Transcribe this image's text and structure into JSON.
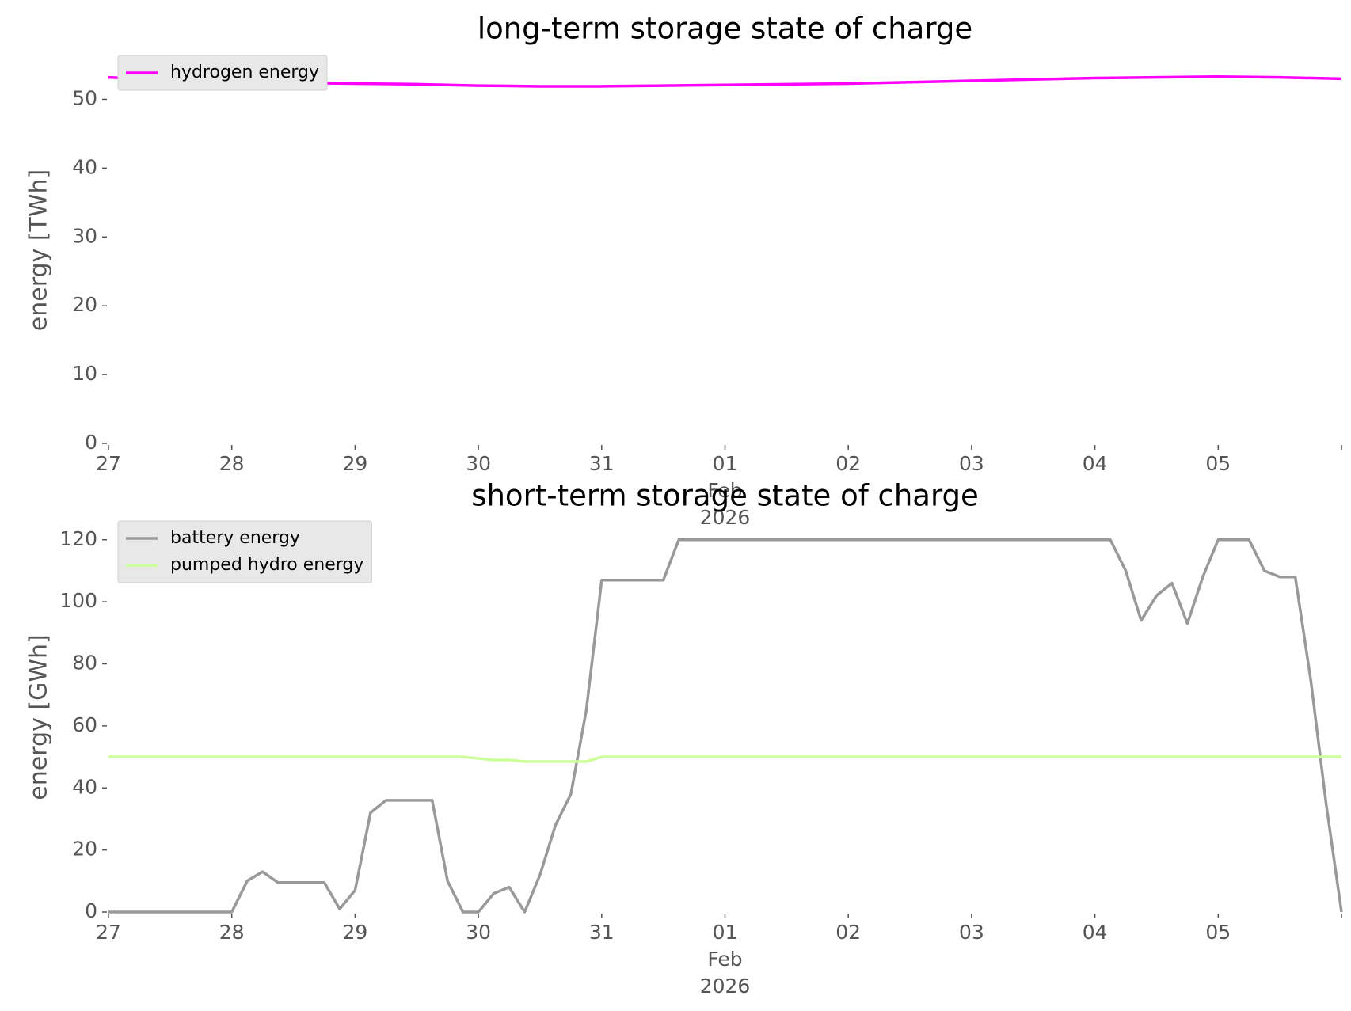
{
  "chart_data": [
    {
      "type": "line",
      "title": "long-term storage state of charge",
      "ylabel": "energy [TWh]",
      "legend": "upper left",
      "x": [
        "2026-01-27T00:00",
        "2026-01-27T12:00",
        "2026-01-28T00:00",
        "2026-01-28T12:00",
        "2026-01-29T00:00",
        "2026-01-29T12:00",
        "2026-01-30T00:00",
        "2026-01-30T12:00",
        "2026-01-31T00:00",
        "2026-01-31T12:00",
        "2026-02-01T00:00",
        "2026-02-01T12:00",
        "2026-02-02T00:00",
        "2026-02-02T12:00",
        "2026-02-03T00:00",
        "2026-02-03T12:00",
        "2026-02-04T00:00",
        "2026-02-04T12:00",
        "2026-02-05T00:00",
        "2026-02-05T12:00",
        "2026-02-06T00:00"
      ],
      "series": [
        {
          "name": "hydrogen energy",
          "color": "#ff00ff",
          "values": [
            53.2,
            52.8,
            52.6,
            52.4,
            52.3,
            52.2,
            52.0,
            51.9,
            51.9,
            52.0,
            52.1,
            52.2,
            52.3,
            52.5,
            52.7,
            52.9,
            53.1,
            53.2,
            53.3,
            53.2,
            53.0
          ]
        }
      ],
      "xlim": [
        "2026-01-27T00:00",
        "2026-02-06T00:00"
      ],
      "xticks": [
        {
          "value": "2026-01-27T00:00",
          "label": "27"
        },
        {
          "value": "2026-01-28T00:00",
          "label": "28"
        },
        {
          "value": "2026-01-29T00:00",
          "label": "29"
        },
        {
          "value": "2026-01-30T00:00",
          "label": "30"
        },
        {
          "value": "2026-01-31T00:00",
          "label": "31"
        },
        {
          "value": "2026-02-01T00:00",
          "label": "01\nFeb\n2026"
        },
        {
          "value": "2026-02-02T00:00",
          "label": "02"
        },
        {
          "value": "2026-02-03T00:00",
          "label": "03"
        },
        {
          "value": "2026-02-04T00:00",
          "label": "04"
        },
        {
          "value": "2026-02-05T00:00",
          "label": "05"
        },
        {
          "value": "2026-02-06T00:00",
          "label": ""
        }
      ],
      "ylim": [
        0,
        55
      ],
      "yticks": [
        0,
        10,
        20,
        30,
        40,
        50
      ]
    },
    {
      "type": "line",
      "title": "short-term storage state of charge",
      "ylabel": "energy [GWh]",
      "legend": "upper left",
      "x": [
        "2026-01-27T00:00",
        "2026-01-27T03:00",
        "2026-01-27T06:00",
        "2026-01-27T09:00",
        "2026-01-27T12:00",
        "2026-01-27T15:00",
        "2026-01-27T18:00",
        "2026-01-27T21:00",
        "2026-01-28T00:00",
        "2026-01-28T03:00",
        "2026-01-28T06:00",
        "2026-01-28T09:00",
        "2026-01-28T12:00",
        "2026-01-28T15:00",
        "2026-01-28T18:00",
        "2026-01-28T21:00",
        "2026-01-29T00:00",
        "2026-01-29T03:00",
        "2026-01-29T06:00",
        "2026-01-29T09:00",
        "2026-01-29T12:00",
        "2026-01-29T15:00",
        "2026-01-29T18:00",
        "2026-01-29T21:00",
        "2026-01-30T00:00",
        "2026-01-30T03:00",
        "2026-01-30T06:00",
        "2026-01-30T09:00",
        "2026-01-30T12:00",
        "2026-01-30T15:00",
        "2026-01-30T18:00",
        "2026-01-30T21:00",
        "2026-01-31T00:00",
        "2026-01-31T03:00",
        "2026-01-31T06:00",
        "2026-01-31T09:00",
        "2026-01-31T12:00",
        "2026-01-31T15:00",
        "2026-01-31T18:00",
        "2026-01-31T21:00",
        "2026-02-01T00:00",
        "2026-02-01T03:00",
        "2026-02-01T06:00",
        "2026-02-01T09:00",
        "2026-02-01T12:00",
        "2026-02-01T15:00",
        "2026-02-01T18:00",
        "2026-02-01T21:00",
        "2026-02-02T00:00",
        "2026-02-02T03:00",
        "2026-02-02T06:00",
        "2026-02-02T09:00",
        "2026-02-02T12:00",
        "2026-02-02T15:00",
        "2026-02-02T18:00",
        "2026-02-02T21:00",
        "2026-02-03T00:00",
        "2026-02-03T03:00",
        "2026-02-03T06:00",
        "2026-02-03T09:00",
        "2026-02-03T12:00",
        "2026-02-03T15:00",
        "2026-02-03T18:00",
        "2026-02-03T21:00",
        "2026-02-04T00:00",
        "2026-02-04T03:00",
        "2026-02-04T06:00",
        "2026-02-04T09:00",
        "2026-02-04T12:00",
        "2026-02-04T15:00",
        "2026-02-04T18:00",
        "2026-02-04T21:00",
        "2026-02-05T00:00",
        "2026-02-05T03:00",
        "2026-02-05T06:00",
        "2026-02-05T09:00",
        "2026-02-05T12:00",
        "2026-02-05T15:00",
        "2026-02-05T18:00",
        "2026-02-05T21:00",
        "2026-02-06T00:00"
      ],
      "series": [
        {
          "name": "battery energy",
          "color": "#999999",
          "values": [
            0,
            0,
            0,
            0,
            0,
            0,
            0,
            0,
            0,
            10,
            13,
            9.5,
            9.5,
            9.5,
            9.5,
            1,
            7,
            32,
            36,
            36,
            36,
            36,
            10,
            0,
            0,
            6,
            8,
            0,
            12,
            28,
            38,
            65,
            107,
            107,
            107,
            107,
            107,
            120,
            120,
            120,
            120,
            120,
            120,
            120,
            120,
            120,
            120,
            120,
            120,
            120,
            120,
            120,
            120,
            120,
            120,
            120,
            120,
            120,
            120,
            120,
            120,
            120,
            120,
            120,
            120,
            120,
            110,
            94,
            102,
            106,
            93,
            108,
            120,
            120,
            120,
            110,
            108,
            108,
            75,
            35,
            0
          ]
        },
        {
          "name": "pumped hydro energy",
          "color": "#ccff99",
          "values": [
            50,
            50,
            50,
            50,
            50,
            50,
            50,
            50,
            50,
            50,
            50,
            50,
            50,
            50,
            50,
            50,
            50,
            50,
            50,
            50,
            50,
            50,
            50,
            50,
            49.5,
            49,
            49,
            48.5,
            48.5,
            48.5,
            48.5,
            48.5,
            50,
            50,
            50,
            50,
            50,
            50,
            50,
            50,
            50,
            50,
            50,
            50,
            50,
            50,
            50,
            50,
            50,
            50,
            50,
            50,
            50,
            50,
            50,
            50,
            50,
            50,
            50,
            50,
            50,
            50,
            50,
            50,
            50,
            50,
            50,
            50,
            50,
            50,
            50,
            50,
            50,
            50,
            50,
            50,
            50,
            50,
            50,
            50,
            50
          ]
        }
      ],
      "xlim": [
        "2026-01-27T00:00",
        "2026-02-06T00:00"
      ],
      "xticks": [
        {
          "value": "2026-01-27T00:00",
          "label": "27"
        },
        {
          "value": "2026-01-28T00:00",
          "label": "28"
        },
        {
          "value": "2026-01-29T00:00",
          "label": "29"
        },
        {
          "value": "2026-01-30T00:00",
          "label": "30"
        },
        {
          "value": "2026-01-31T00:00",
          "label": "31"
        },
        {
          "value": "2026-02-01T00:00",
          "label": "01\nFeb\n2026"
        },
        {
          "value": "2026-02-02T00:00",
          "label": "02"
        },
        {
          "value": "2026-02-03T00:00",
          "label": "03"
        },
        {
          "value": "2026-02-04T00:00",
          "label": "04"
        },
        {
          "value": "2026-02-05T00:00",
          "label": "05"
        },
        {
          "value": "2026-02-06T00:00",
          "label": ""
        }
      ],
      "ylim": [
        0,
        123
      ],
      "yticks": [
        0,
        20,
        40,
        60,
        80,
        100,
        120
      ]
    }
  ]
}
